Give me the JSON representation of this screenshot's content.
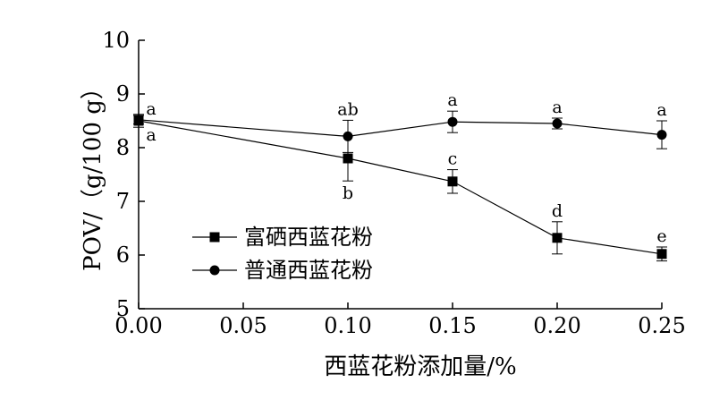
{
  "chart_data": {
    "type": "line",
    "xlabel": "西蓝花粉添加量/%",
    "ylabel": "POV/（g/100 g）",
    "xlim": [
      0.0,
      0.25
    ],
    "ylim": [
      5,
      10
    ],
    "xticks": [
      "0.00",
      "0.05",
      "0.10",
      "0.15",
      "0.20",
      "0.25"
    ],
    "yticks": [
      "5",
      "6",
      "7",
      "8",
      "9",
      "10"
    ],
    "grid": false,
    "legend_position": "bottom-left",
    "series": [
      {
        "name": "富硒西蓝花粉",
        "marker": "square",
        "color": "#000000",
        "points": [
          {
            "x": 0.0,
            "y": 8.5,
            "err": 0.12,
            "sig": "a"
          },
          {
            "x": 0.1,
            "y": 7.8,
            "err": 0.42,
            "sig": "b"
          },
          {
            "x": 0.15,
            "y": 7.37,
            "err": 0.22,
            "sig": "c"
          },
          {
            "x": 0.2,
            "y": 6.32,
            "err": 0.3,
            "sig": "d"
          },
          {
            "x": 0.25,
            "y": 6.02,
            "err": 0.13,
            "sig": "e"
          }
        ]
      },
      {
        "name": "普通西蓝花粉",
        "marker": "circle",
        "color": "#000000",
        "points": [
          {
            "x": 0.0,
            "y": 8.52,
            "err": 0.08,
            "sig": "a"
          },
          {
            "x": 0.1,
            "y": 8.21,
            "err": 0.3,
            "sig": "ab"
          },
          {
            "x": 0.15,
            "y": 8.48,
            "err": 0.2,
            "sig": "a"
          },
          {
            "x": 0.2,
            "y": 8.45,
            "err": 0.1,
            "sig": "a"
          },
          {
            "x": 0.25,
            "y": 8.24,
            "err": 0.26,
            "sig": "a"
          }
        ]
      }
    ]
  }
}
